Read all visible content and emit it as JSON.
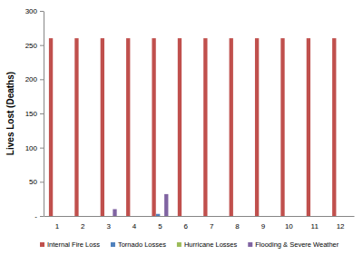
{
  "chart_data": {
    "type": "bar",
    "y_label": "Lives Lost (Deaths)",
    "categories": [
      "1",
      "2",
      "3",
      "4",
      "5",
      "6",
      "7",
      "8",
      "9",
      "10",
      "11",
      "12"
    ],
    "series": [
      {
        "name": "Internal Fire Loss",
        "color": "#c0504d",
        "values": [
          260,
          260,
          260,
          260,
          260,
          260,
          260,
          260,
          260,
          260,
          260,
          260
        ]
      },
      {
        "name": "Tornado Losses",
        "color": "#4f81bd",
        "values": [
          0,
          0,
          0,
          0,
          3,
          0,
          0,
          0,
          0,
          0,
          0,
          0
        ]
      },
      {
        "name": "Hurricane Losses",
        "color": "#9bbb59",
        "values": [
          0,
          0,
          0,
          0,
          0,
          0,
          0,
          0,
          0,
          0,
          0,
          0
        ]
      },
      {
        "name": "Flooding & Severe Weather",
        "color": "#8064a2",
        "values": [
          0,
          0,
          10,
          0,
          32,
          0,
          0,
          0,
          0,
          0,
          0,
          0
        ]
      }
    ],
    "ylim": [
      0,
      300
    ],
    "yticks": [
      {
        "value": 0,
        "label": "-"
      },
      50,
      100,
      150,
      200,
      250,
      300
    ],
    "grid": false,
    "legend": "bottom"
  }
}
